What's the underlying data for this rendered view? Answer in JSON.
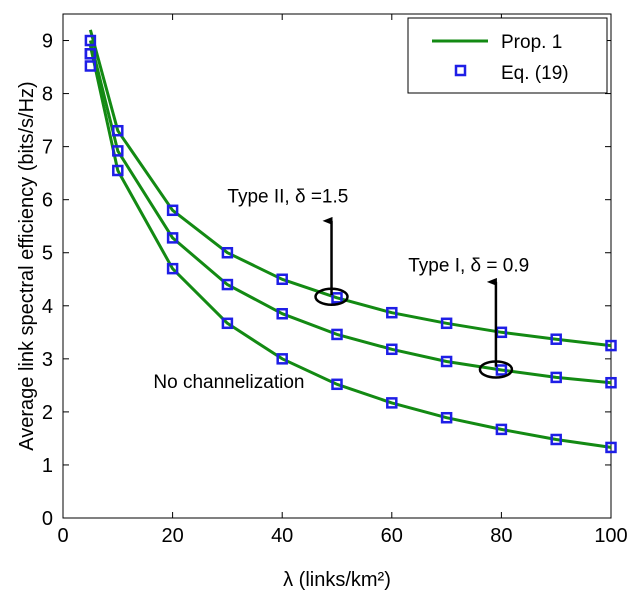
{
  "chart_data": {
    "type": "line",
    "xlabel": "λ (links/km²)",
    "ylabel": "Average link spectral efficiency (bits/s/Hz)",
    "xlim": [
      0,
      100
    ],
    "ylim": [
      0,
      9.5
    ],
    "xticks": [
      0,
      20,
      40,
      60,
      80,
      100
    ],
    "yticks": [
      0,
      1,
      2,
      3,
      4,
      5,
      6,
      7,
      8,
      9
    ],
    "grid": false,
    "legend_position": "top-right",
    "legend": [
      "Prop. 1",
      "Eq. (19)"
    ],
    "colors": {
      "line": "#138a13",
      "marker": "#1e1ee6"
    },
    "series": [
      {
        "line_x": [
          5,
          10,
          20,
          30,
          40,
          50,
          60,
          70,
          80,
          90,
          100
        ],
        "line_y": [
          9.2,
          7.3,
          5.8,
          5.0,
          4.5,
          4.15,
          3.87,
          3.67,
          3.5,
          3.37,
          3.25
        ],
        "marker_x": [
          5,
          5,
          10,
          20,
          30,
          40,
          50,
          60,
          70,
          80,
          90,
          100
        ],
        "marker_y": [
          9.0,
          8.75,
          7.3,
          5.8,
          5.0,
          4.5,
          4.15,
          3.87,
          3.67,
          3.5,
          3.37,
          3.25
        ]
      },
      {
        "line_x": [
          5,
          10,
          20,
          30,
          40,
          50,
          60,
          70,
          80,
          90,
          100
        ],
        "line_y": [
          9.0,
          6.92,
          5.28,
          4.4,
          3.85,
          3.46,
          3.18,
          2.95,
          2.79,
          2.65,
          2.55
        ],
        "marker_x": [
          5,
          10,
          20,
          30,
          40,
          50,
          60,
          70,
          80,
          90,
          100
        ],
        "marker_y": [
          8.75,
          6.92,
          5.28,
          4.4,
          3.85,
          3.46,
          3.18,
          2.95,
          2.79,
          2.65,
          2.55
        ]
      },
      {
        "line_x": [
          5,
          10,
          20,
          30,
          40,
          50,
          60,
          70,
          80,
          90,
          100
        ],
        "line_y": [
          8.9,
          6.55,
          4.7,
          3.67,
          3.0,
          2.52,
          2.17,
          1.89,
          1.67,
          1.48,
          1.33
        ],
        "marker_x": [
          5,
          10,
          20,
          30,
          40,
          50,
          60,
          70,
          80,
          90,
          100
        ],
        "marker_y": [
          8.52,
          6.55,
          4.7,
          3.67,
          3.0,
          2.52,
          2.17,
          1.89,
          1.67,
          1.48,
          1.33
        ]
      }
    ],
    "annotations": [
      {
        "text": "Type II, δ =1.5",
        "x": 30,
        "y": 5.95,
        "arrow_x": 49,
        "arrow_from": 4.2,
        "arrow_to": 5.6,
        "ellipse_x": 49,
        "ellipse_y": 4.17
      },
      {
        "text": "Type I, δ = 0.9",
        "x": 63,
        "y": 4.65,
        "arrow_x": 79,
        "arrow_from": 2.85,
        "arrow_to": 4.45,
        "ellipse_x": 79,
        "ellipse_y": 2.8
      },
      {
        "text": "No channelization",
        "x": 16.5,
        "y": 2.45
      }
    ]
  }
}
